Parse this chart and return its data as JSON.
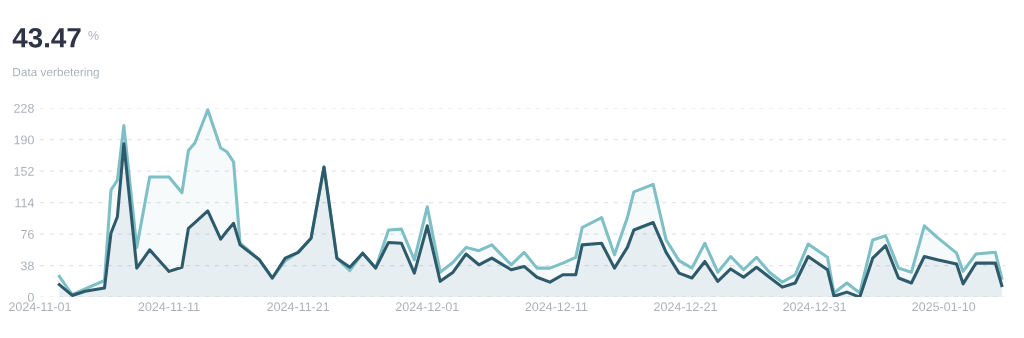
{
  "chart_data": {
    "type": "area",
    "title": "43.47",
    "subtitle": "Data verbetering",
    "annotations": [
      "%"
    ],
    "x": [
      "2024-11-02T12:00",
      "2024-11-03T12:00",
      "2024-11-04T12:00",
      "2024-11-06",
      "2024-11-06T12:00",
      "2024-11-07",
      "2024-11-07T12:00",
      "2024-11-08T12:00",
      "2024-11-09T12:00",
      "2024-11-11",
      "2024-11-12",
      "2024-11-12T12:00",
      "2024-11-13",
      "2024-11-14",
      "2024-11-15",
      "2024-11-15T12:00",
      "2024-11-16",
      "2024-11-16T12:00",
      "2024-11-18",
      "2024-11-19",
      "2024-11-20",
      "2024-11-21",
      "2024-11-22",
      "2024-11-23",
      "2024-11-24",
      "2024-11-25",
      "2024-11-26",
      "2024-11-27",
      "2024-11-28",
      "2024-11-29",
      "2024-11-30",
      "2024-12-01",
      "2024-12-02",
      "2024-12-03",
      "2024-12-04",
      "2024-12-05",
      "2024-12-06",
      "2024-12-07T12:00",
      "2024-12-08T12:00",
      "2024-12-09T12:00",
      "2024-12-10T12:00",
      "2024-12-11T12:00",
      "2024-12-12T12:00",
      "2024-12-13",
      "2024-12-14T12:00",
      "2024-12-15T12:00",
      "2024-12-16T12:00",
      "2024-12-17",
      "2024-12-18T12:00",
      "2024-12-19T12:00",
      "2024-12-20T12:00",
      "2024-12-21T12:00",
      "2024-12-22T12:00",
      "2024-12-23T12:00",
      "2024-12-24T12:00",
      "2024-12-25T12:00",
      "2024-12-26T12:00",
      "2024-12-27T12:00",
      "2024-12-28T12:00",
      "2024-12-29T12:00",
      "2024-12-30T12:00",
      "2025-01-01",
      "2025-01-01T12:00",
      "2025-01-02T12:00",
      "2025-01-03T12:00",
      "2025-01-04T12:00",
      "2025-01-05T12:00",
      "2025-01-06T12:00",
      "2025-01-07T12:00",
      "2025-01-08T12:00",
      "2025-01-09T12:00",
      "2025-01-11",
      "2025-01-11T12:00",
      "2025-01-12T12:00",
      "2025-01-14",
      "2025-01-14T12:00"
    ],
    "series": [
      {
        "color": "#7fbfc6",
        "values": [
          25,
          3,
          10,
          20,
          129,
          141,
          207,
          60,
          145,
          145,
          126,
          177,
          186,
          226,
          180,
          175,
          163,
          65,
          45,
          23,
          44,
          54,
          71,
          157,
          47,
          32,
          53,
          35,
          81,
          82,
          45,
          109,
          30,
          42,
          60,
          56,
          63,
          39,
          54,
          35,
          35,
          41,
          48,
          84,
          96,
          51,
          96,
          127,
          136,
          69,
          44,
          35,
          65,
          30,
          49,
          33,
          48,
          30,
          18,
          27,
          64,
          48,
          5,
          17,
          5,
          69,
          74,
          35,
          30,
          86,
          72,
          53,
          31,
          52,
          54,
          23
        ]
      },
      {
        "color": "#2e5b6b",
        "values": [
          15,
          2,
          7,
          11,
          77,
          97,
          185,
          35,
          57,
          31,
          36,
          83,
          90,
          104,
          70,
          80,
          89,
          63,
          45,
          23,
          47,
          54,
          71,
          157,
          47,
          36,
          53,
          35,
          66,
          65,
          29,
          86,
          19,
          30,
          52,
          39,
          47,
          33,
          37,
          24,
          18,
          27,
          27,
          63,
          65,
          35,
          60,
          81,
          90,
          54,
          29,
          23,
          43,
          19,
          34,
          24,
          36,
          24,
          12,
          17,
          49,
          33,
          1,
          6,
          0,
          47,
          62,
          23,
          17,
          49,
          45,
          40,
          16,
          41,
          41,
          14
        ]
      }
    ],
    "xlim": [
      "2024-11-01",
      "2025-01-14T19:00"
    ],
    "xticks": [
      {
        "value": "2024-11-01",
        "label": "2024-11-01"
      },
      {
        "value": "2024-11-11",
        "label": "2024-11-11"
      },
      {
        "value": "2024-11-21",
        "label": "2024-11-21"
      },
      {
        "value": "2024-12-01",
        "label": "2024-12-01"
      },
      {
        "value": "2024-12-11",
        "label": "2024-12-11"
      },
      {
        "value": "2024-12-21",
        "label": "2024-12-21"
      },
      {
        "value": "2024-12-31",
        "label": "2024-12-31"
      },
      {
        "value": "2025-01-10",
        "label": "2025-01-10"
      }
    ],
    "ylim": [
      0,
      228
    ],
    "yticks": [
      0,
      38,
      76,
      114,
      152,
      190,
      228
    ],
    "grid": "y",
    "line_style": "solid",
    "legend": false
  }
}
